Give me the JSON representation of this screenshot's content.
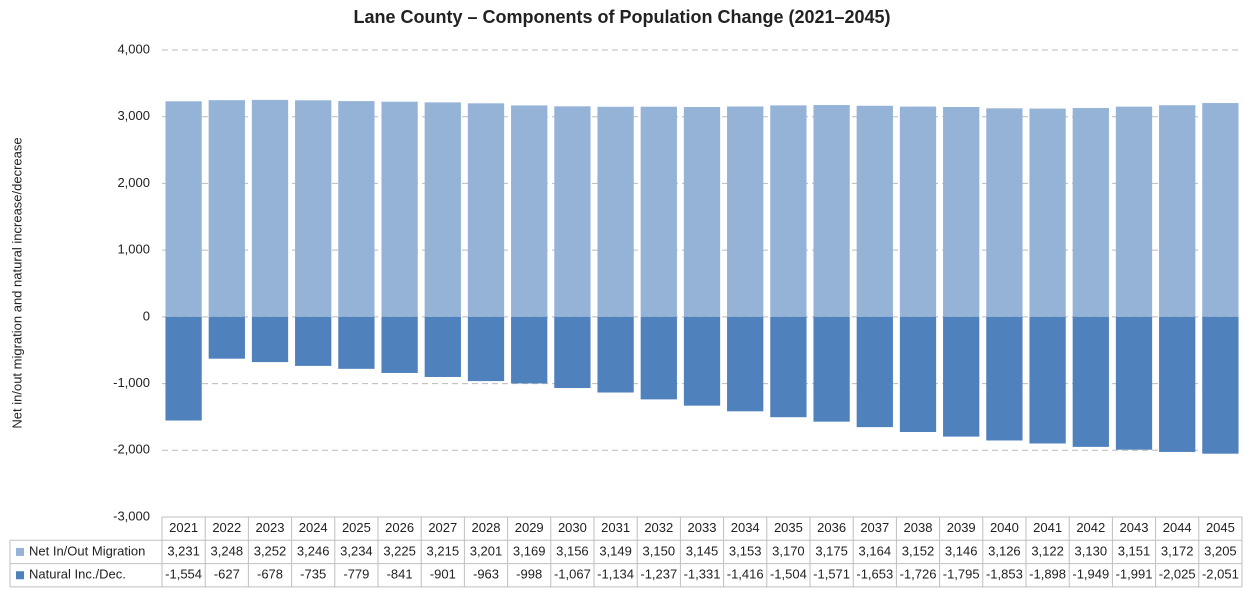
{
  "chart_data": {
    "type": "bar",
    "stacked": true,
    "title": "Lane County – Components of Population Change (2021–2045)",
    "y_axis_label": "Net in/out migration and natural increase/decrease",
    "categories": [
      "2021",
      "2022",
      "2023",
      "2024",
      "2025",
      "2026",
      "2027",
      "2028",
      "2029",
      "2030",
      "2031",
      "2032",
      "2033",
      "2034",
      "2035",
      "2036",
      "2037",
      "2038",
      "2039",
      "2040",
      "2041",
      "2042",
      "2043",
      "2044",
      "2045"
    ],
    "series": [
      {
        "name": "Net In/Out Migration",
        "color": "#95b3d7",
        "values": [
          3231,
          3248,
          3252,
          3246,
          3234,
          3225,
          3215,
          3201,
          3169,
          3156,
          3149,
          3150,
          3145,
          3153,
          3170,
          3175,
          3164,
          3152,
          3146,
          3126,
          3122,
          3130,
          3151,
          3172,
          3205
        ],
        "value_labels": [
          "3,231",
          "3,248",
          "3,252",
          "3,246",
          "3,234",
          "3,225",
          "3,215",
          "3,201",
          "3,169",
          "3,156",
          "3,149",
          "3,150",
          "3,145",
          "3,153",
          "3,170",
          "3,175",
          "3,164",
          "3,152",
          "3,146",
          "3,126",
          "3,122",
          "3,130",
          "3,151",
          "3,172",
          "3,205"
        ]
      },
      {
        "name": "Natural Inc./Dec.",
        "color": "#4f81bd",
        "values": [
          -1554,
          -627,
          -678,
          -735,
          -779,
          -841,
          -901,
          -963,
          -998,
          -1067,
          -1134,
          -1237,
          -1331,
          -1416,
          -1504,
          -1571,
          -1653,
          -1726,
          -1795,
          -1853,
          -1898,
          -1949,
          -1991,
          -2025,
          -2051
        ],
        "value_labels": [
          "-1,554",
          "-627",
          "-678",
          "-735",
          "-779",
          "-841",
          "-901",
          "-963",
          "-998",
          "-1,067",
          "-1,134",
          "-1,237",
          "-1,331",
          "-1,416",
          "-1,504",
          "-1,571",
          "-1,653",
          "-1,726",
          "-1,795",
          "-1,853",
          "-1,898",
          "-1,949",
          "-1,991",
          "-2,025",
          "-2,051"
        ]
      }
    ],
    "ylim": [
      -3000,
      4000
    ],
    "yticks": [
      {
        "value": -3000,
        "label": "-3,000"
      },
      {
        "value": -2000,
        "label": "-2,000"
      },
      {
        "value": -1000,
        "label": "-1,000"
      },
      0,
      {
        "value": 1000,
        "label": "1,000"
      },
      {
        "value": 2000,
        "label": "2,000"
      },
      {
        "value": 3000,
        "label": "3,000"
      },
      {
        "value": 4000,
        "label": "4,000"
      }
    ],
    "grid": true,
    "data_table": true
  }
}
